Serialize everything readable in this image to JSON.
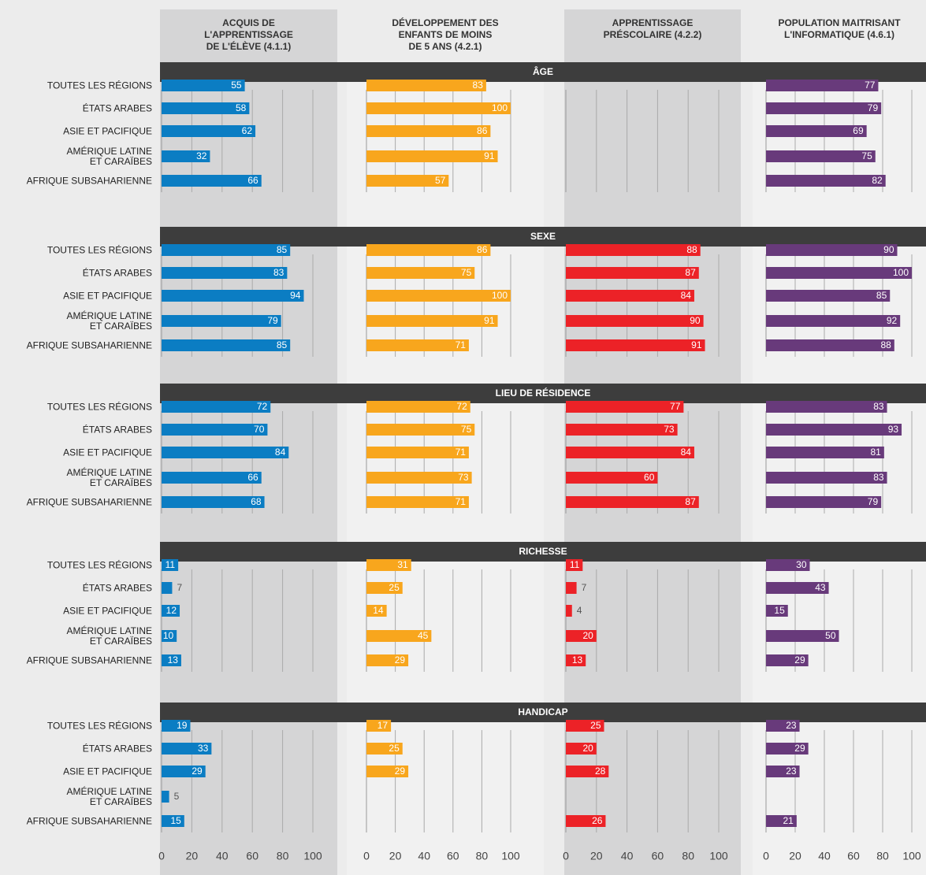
{
  "chart_data": {
    "type": "bar",
    "columns": [
      "ACQUIS DE\nL'APPRENTISSAGE\nDE L'ÉLÈVE (4.1.1)",
      "DÉVELOPPEMENT DES\nENFANTS DE MOINS\nDE 5 ANS (4.2.1)",
      "APPRENTISSAGE\nPRÉSCOLAIRE (4.2.2)",
      "POPULATION MAITRISANT\nL'INFORMATIQUE (4.6.1)"
    ],
    "colors": [
      "#0b7dc3",
      "#f8a61d",
      "#ec2227",
      "#683a7b"
    ],
    "regions": [
      "TOUTES LES RÉGIONS",
      "ÉTATS ARABES",
      "ASIE ET PACIFIQUE",
      "AMÉRIQUE LATINE\nET CARAÏBES",
      "AFRIQUE SUBSAHARIENNE"
    ],
    "sections": [
      {
        "title": "ÂGE",
        "values": [
          [
            55,
            58,
            62,
            32,
            66
          ],
          [
            83,
            100,
            86,
            91,
            57
          ],
          [
            null,
            null,
            null,
            null,
            null
          ],
          [
            77,
            79,
            69,
            75,
            82
          ]
        ]
      },
      {
        "title": "SEXE",
        "values": [
          [
            85,
            83,
            94,
            79,
            85
          ],
          [
            86,
            75,
            100,
            91,
            71
          ],
          [
            88,
            87,
            84,
            90,
            91
          ],
          [
            90,
            100,
            85,
            92,
            88
          ]
        ]
      },
      {
        "title": "LIEU DE RÉSIDENCE",
        "values": [
          [
            72,
            70,
            84,
            66,
            68
          ],
          [
            72,
            75,
            71,
            73,
            71
          ],
          [
            77,
            73,
            84,
            60,
            87
          ],
          [
            83,
            93,
            81,
            83,
            79
          ]
        ]
      },
      {
        "title": "RICHESSE",
        "values": [
          [
            11,
            7,
            12,
            10,
            13
          ],
          [
            31,
            25,
            14,
            45,
            29
          ],
          [
            11,
            7,
            4,
            20,
            13
          ],
          [
            30,
            43,
            15,
            50,
            29
          ]
        ]
      },
      {
        "title": "HANDICAP",
        "values": [
          [
            19,
            33,
            29,
            5,
            15
          ],
          [
            17,
            25,
            29,
            null,
            null
          ],
          [
            25,
            20,
            28,
            null,
            26
          ],
          [
            23,
            29,
            23,
            null,
            21
          ]
        ]
      }
    ],
    "xlim": [
      0,
      100
    ],
    "xticks": [
      0,
      20,
      40,
      60,
      80,
      100
    ]
  }
}
